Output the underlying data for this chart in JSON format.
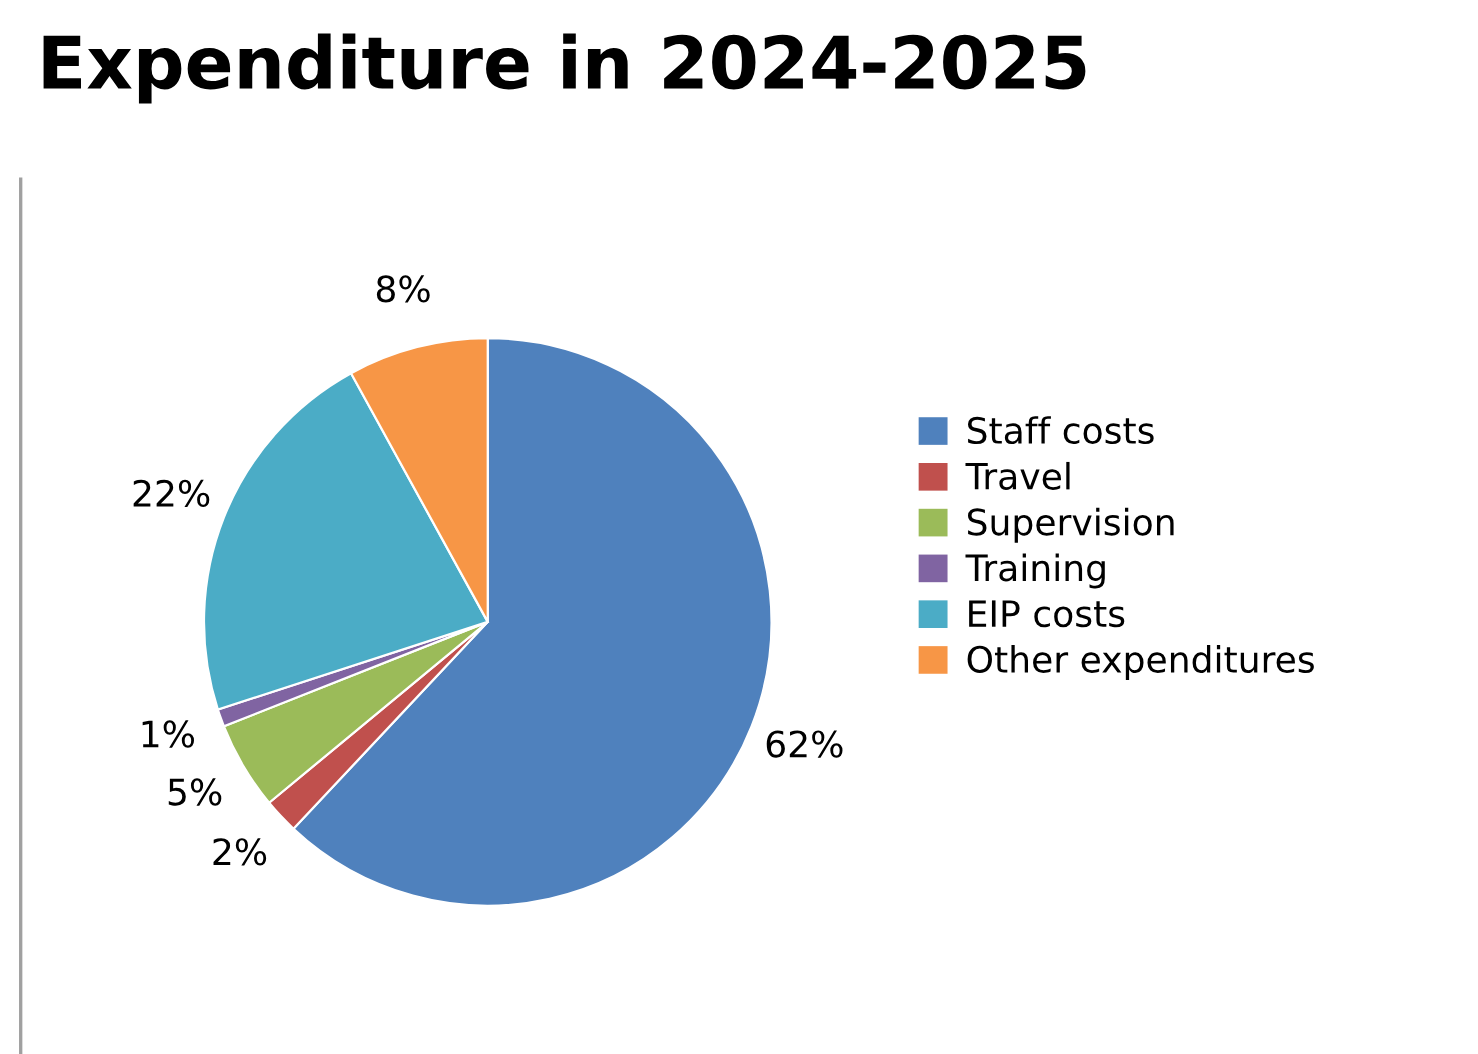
{
  "chart_data": {
    "type": "pie",
    "title": "Expenditure in 2024-2025",
    "categories": [
      "Staff costs",
      "Travel",
      "Supervision",
      "Training",
      "EIP costs",
      "Other expenditures"
    ],
    "values": [
      62,
      2,
      5,
      1,
      22,
      8
    ],
    "colors": [
      "#4f81bd",
      "#c0504d",
      "#9bbb59",
      "#8064a2",
      "#4bacc6",
      "#f79646"
    ],
    "value_labels": [
      "62%",
      "2%",
      "5%",
      "1%",
      "22%",
      "8%"
    ],
    "legend": "right"
  }
}
